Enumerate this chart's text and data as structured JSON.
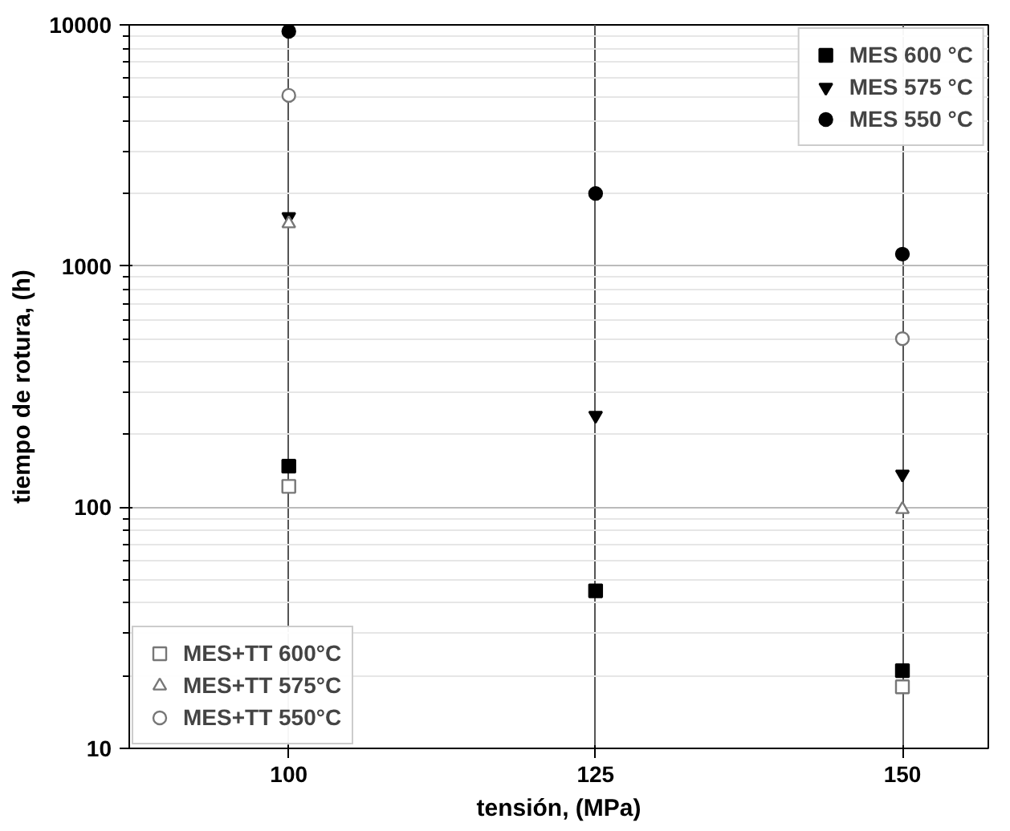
{
  "chart_data": {
    "type": "scatter",
    "xlabel": "tensión, (MPa)",
    "ylabel": "tiempo de rotura, (h)",
    "x": [
      100,
      125,
      150
    ],
    "xlim": [
      87,
      157
    ],
    "xticks": [
      100,
      125,
      150
    ],
    "ylim": [
      10,
      10000
    ],
    "yticks": [
      10,
      100,
      1000,
      10000
    ],
    "log": "y",
    "grid": true,
    "legend": [
      "top right",
      "bottom left"
    ],
    "series": [
      {
        "name": "MES 600 °C",
        "color": "#000000",
        "marker": "square",
        "values": [
          148,
          45,
          21
        ]
      },
      {
        "name": "MES 575 °C",
        "color": "#000000",
        "marker": "triangle",
        "values": [
          1600,
          240,
          137
        ]
      },
      {
        "name": "MES 550 °C",
        "color": "#000000",
        "marker": "circle",
        "values": [
          9400,
          2000,
          1120
        ]
      },
      {
        "name": "MES+TT 600°C",
        "color": "#ffffff",
        "marker": "square",
        "values": [
          122,
          null,
          18
        ]
      },
      {
        "name": "MES+TT 575°C",
        "color": "#ffffff",
        "marker": "triangle",
        "values": [
          1500,
          null,
          98
        ]
      },
      {
        "name": "MES+TT 550°C",
        "color": "#ffffff",
        "marker": "circle",
        "values": [
          5100,
          null,
          500
        ]
      }
    ]
  }
}
